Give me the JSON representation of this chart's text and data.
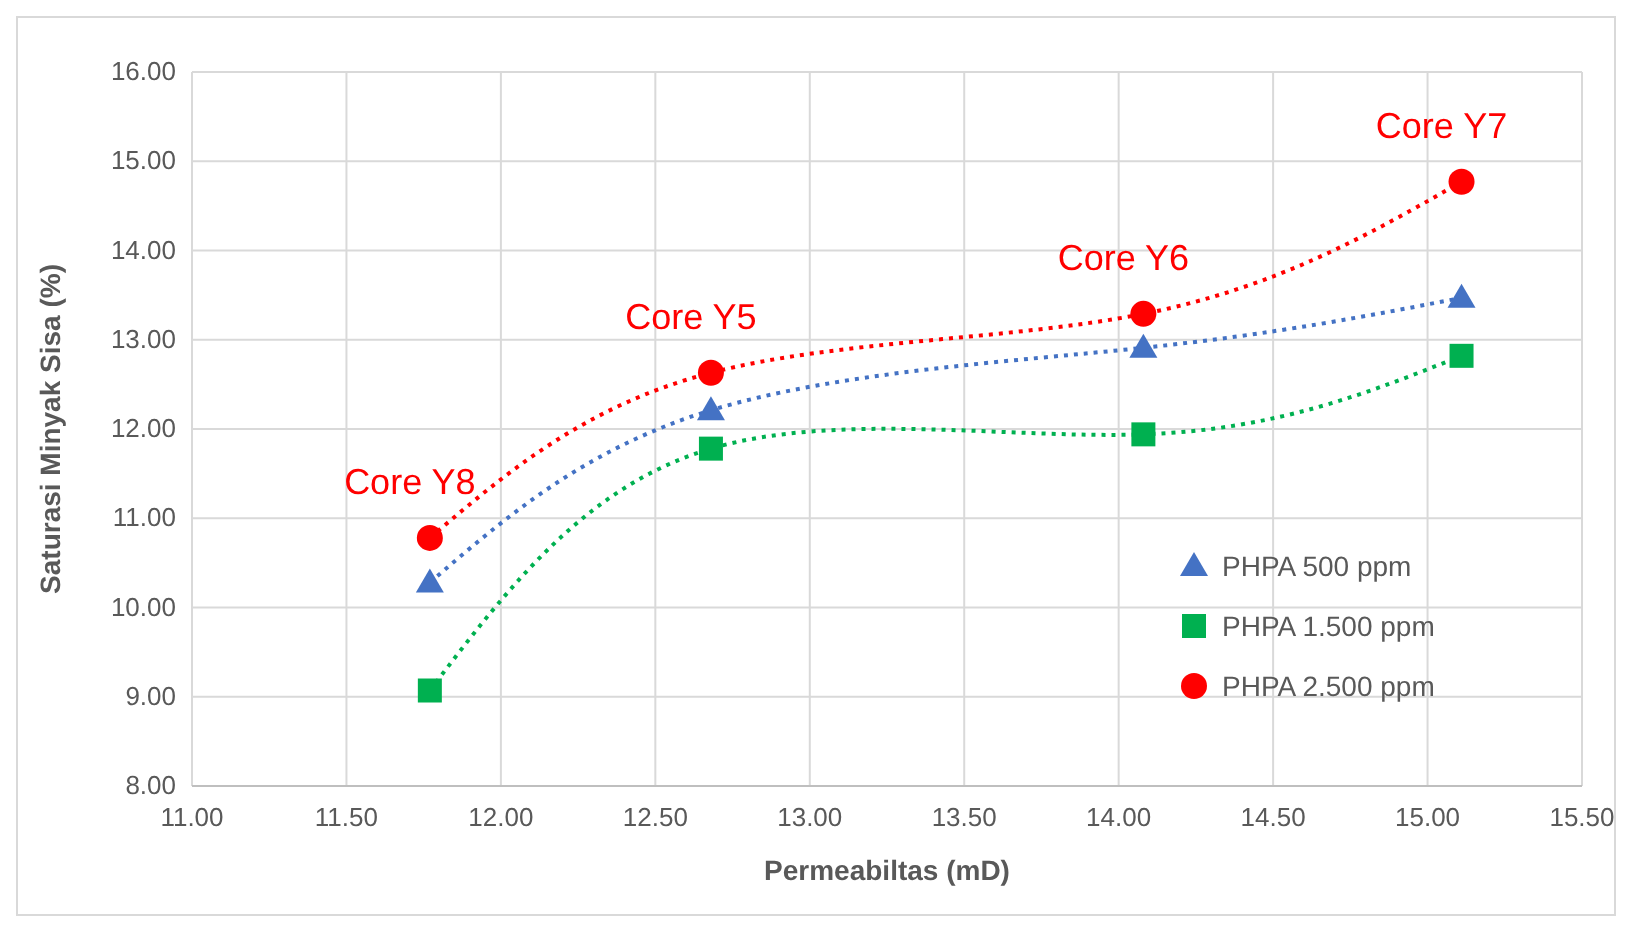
{
  "chart_data": {
    "type": "line",
    "xlabel": "Permeabiltas  (mD)",
    "ylabel": "Saturasi Minyak Sisa (%)",
    "x": [
      11.77,
      12.68,
      14.08,
      15.11
    ],
    "series": [
      {
        "name": "PHPA 500 ppm",
        "color": "#4472c4",
        "marker": "triangle",
        "values": [
          10.28,
          12.21,
          12.91,
          13.47
        ]
      },
      {
        "name": "PHPA 1.500 ppm",
        "color": "#00b050",
        "marker": "square",
        "values": [
          9.07,
          11.78,
          11.94,
          12.82
        ]
      },
      {
        "name": "PHPA 2.500 ppm",
        "color": "#ff0000",
        "marker": "circle",
        "values": [
          10.78,
          12.63,
          13.29,
          14.77
        ]
      }
    ],
    "line_style": "dotted",
    "xlim": [
      11,
      15.5
    ],
    "xticks": [
      {
        "value": 11,
        "label": "11.00"
      },
      {
        "value": 11.5,
        "label": "11.50"
      },
      {
        "value": 12,
        "label": "12.00"
      },
      {
        "value": 12.5,
        "label": "12.50"
      },
      {
        "value": 13,
        "label": "13.00"
      },
      {
        "value": 13.5,
        "label": "13.50"
      },
      {
        "value": 14,
        "label": "14.00"
      },
      {
        "value": 14.5,
        "label": "14.50"
      },
      {
        "value": 15,
        "label": "15.00"
      },
      {
        "value": 15.5,
        "label": "15.50"
      }
    ],
    "ylim": [
      8,
      16
    ],
    "yticks": [
      {
        "value": 8,
        "label": "8.00"
      },
      {
        "value": 9,
        "label": "9.00"
      },
      {
        "value": 10,
        "label": "10.00"
      },
      {
        "value": 11,
        "label": "11.00"
      },
      {
        "value": 12,
        "label": "12.00"
      },
      {
        "value": 13,
        "label": "13.00"
      },
      {
        "value": 14,
        "label": "14.00"
      },
      {
        "value": 15,
        "label": "15.00"
      },
      {
        "value": 16,
        "label": "16.00"
      }
    ],
    "grid": true,
    "legend": "bottom right",
    "annotations": [
      {
        "text": "Core Y8",
        "x": 11.77,
        "y": 10.78
      },
      {
        "text": "Core Y5",
        "x": 12.68,
        "y": 12.63
      },
      {
        "text": "Core Y6",
        "x": 14.08,
        "y": 13.29
      },
      {
        "text": "Core Y7",
        "x": 15.11,
        "y": 14.77
      }
    ]
  }
}
